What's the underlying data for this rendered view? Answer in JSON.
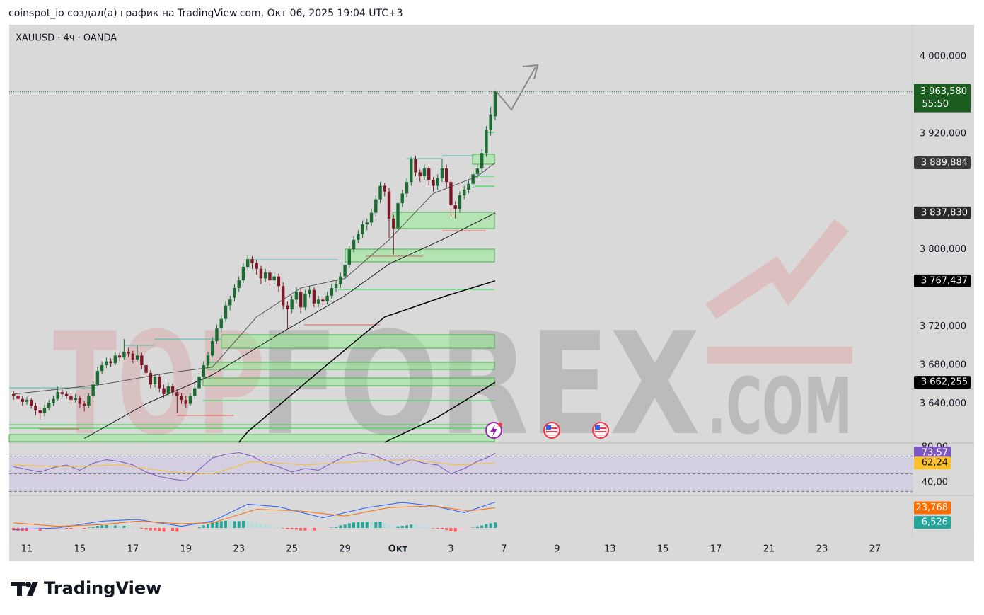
{
  "header": "coinspot_io создал(а) график на TradingView.com, Окт 06, 2025 19:04 UTC+3",
  "footer_logo": "TradingView",
  "chart_data": [
    {
      "type": "candlestick",
      "title": "XAUUSD · 4ч · OANDA",
      "watermark": [
        "TOP",
        "FOREX",
        ".COM"
      ],
      "up_color": "#1b6b32",
      "down_color": "#7b1a27",
      "ohlc": [
        [
          3650,
          3653,
          3644,
          3648
        ],
        [
          3648,
          3651,
          3642,
          3645
        ],
        [
          3645,
          3648,
          3638,
          3642
        ],
        [
          3642,
          3647,
          3639,
          3644
        ],
        [
          3644,
          3646,
          3635,
          3638
        ],
        [
          3638,
          3641,
          3628,
          3633
        ],
        [
          3633,
          3636,
          3624,
          3630
        ],
        [
          3630,
          3639,
          3627,
          3636
        ],
        [
          3636,
          3644,
          3633,
          3641
        ],
        [
          3641,
          3648,
          3638,
          3645
        ],
        [
          3645,
          3658,
          3643,
          3652
        ],
        [
          3652,
          3656,
          3647,
          3650
        ],
        [
          3650,
          3653,
          3645,
          3648
        ],
        [
          3648,
          3651,
          3640,
          3644
        ],
        [
          3644,
          3650,
          3641,
          3646
        ],
        [
          3646,
          3648,
          3636,
          3640
        ],
        [
          3640,
          3643,
          3632,
          3638
        ],
        [
          3638,
          3651,
          3636,
          3648
        ],
        [
          3648,
          3663,
          3646,
          3660
        ],
        [
          3660,
          3678,
          3658,
          3674
        ],
        [
          3674,
          3684,
          3671,
          3680
        ],
        [
          3680,
          3688,
          3677,
          3684
        ],
        [
          3684,
          3687,
          3678,
          3682
        ],
        [
          3682,
          3694,
          3680,
          3690
        ],
        [
          3690,
          3693,
          3684,
          3688
        ],
        [
          3688,
          3707,
          3686,
          3694
        ],
        [
          3694,
          3698,
          3688,
          3692
        ],
        [
          3692,
          3695,
          3682,
          3686
        ],
        [
          3686,
          3700,
          3684,
          3690
        ],
        [
          3690,
          3693,
          3676,
          3680
        ],
        [
          3680,
          3683,
          3668,
          3672
        ],
        [
          3672,
          3675,
          3656,
          3660
        ],
        [
          3660,
          3671,
          3657,
          3668
        ],
        [
          3668,
          3670,
          3652,
          3656
        ],
        [
          3656,
          3660,
          3646,
          3650
        ],
        [
          3650,
          3662,
          3648,
          3658
        ],
        [
          3658,
          3661,
          3648,
          3652
        ],
        [
          3652,
          3655,
          3630,
          3648
        ],
        [
          3648,
          3651,
          3640,
          3644
        ],
        [
          3644,
          3648,
          3636,
          3640
        ],
        [
          3640,
          3651,
          3638,
          3648
        ],
        [
          3648,
          3660,
          3645,
          3656
        ],
        [
          3656,
          3672,
          3654,
          3668
        ],
        [
          3668,
          3684,
          3665,
          3680
        ],
        [
          3680,
          3694,
          3677,
          3690
        ],
        [
          3690,
          3709,
          3688,
          3705
        ],
        [
          3705,
          3722,
          3702,
          3718
        ],
        [
          3718,
          3732,
          3714,
          3728
        ],
        [
          3728,
          3746,
          3725,
          3742
        ],
        [
          3742,
          3752,
          3737,
          3748
        ],
        [
          3750,
          3764,
          3746,
          3760
        ],
        [
          3760,
          3772,
          3756,
          3768
        ],
        [
          3768,
          3786,
          3765,
          3782
        ],
        [
          3782,
          3794,
          3778,
          3790
        ],
        [
          3790,
          3793,
          3780,
          3786
        ],
        [
          3786,
          3789,
          3774,
          3780
        ],
        [
          3780,
          3783,
          3764,
          3770
        ],
        [
          3770,
          3780,
          3766,
          3776
        ],
        [
          3776,
          3779,
          3762,
          3768
        ],
        [
          3768,
          3776,
          3764,
          3772
        ],
        [
          3772,
          3775,
          3756,
          3762
        ],
        [
          3762,
          3766,
          3738,
          3742
        ],
        [
          3742,
          3746,
          3717,
          3738
        ],
        [
          3738,
          3752,
          3734,
          3748
        ],
        [
          3748,
          3761,
          3744,
          3756
        ],
        [
          3756,
          3759,
          3734,
          3740
        ],
        [
          3740,
          3758,
          3737,
          3754
        ],
        [
          3754,
          3762,
          3750,
          3758
        ],
        [
          3758,
          3761,
          3740,
          3744
        ],
        [
          3744,
          3752,
          3740,
          3748
        ],
        [
          3748,
          3751,
          3742,
          3746
        ],
        [
          3746,
          3756,
          3743,
          3752
        ],
        [
          3752,
          3764,
          3749,
          3760
        ],
        [
          3760,
          3768,
          3756,
          3764
        ],
        [
          3764,
          3776,
          3760,
          3772
        ],
        [
          3772,
          3788,
          3769,
          3784
        ],
        [
          3784,
          3804,
          3781,
          3800
        ],
        [
          3800,
          3814,
          3797,
          3810
        ],
        [
          3810,
          3820,
          3806,
          3816
        ],
        [
          3816,
          3830,
          3812,
          3826
        ],
        [
          3826,
          3832,
          3820,
          3828
        ],
        [
          3828,
          3842,
          3824,
          3838
        ],
        [
          3838,
          3856,
          3834,
          3852
        ],
        [
          3852,
          3870,
          3848,
          3866
        ],
        [
          3866,
          3869,
          3855,
          3860
        ],
        [
          3860,
          3864,
          3812,
          3832
        ],
        [
          3832,
          3836,
          3795,
          3822
        ],
        [
          3822,
          3852,
          3818,
          3848
        ],
        [
          3848,
          3862,
          3844,
          3858
        ],
        [
          3858,
          3874,
          3854,
          3870
        ],
        [
          3870,
          3896,
          3866,
          3894
        ],
        [
          3894,
          3897,
          3876,
          3880
        ],
        [
          3880,
          3883,
          3870,
          3876
        ],
        [
          3876,
          3888,
          3872,
          3884
        ],
        [
          3884,
          3887,
          3866,
          3872
        ],
        [
          3872,
          3875,
          3860,
          3866
        ],
        [
          3866,
          3878,
          3862,
          3874
        ],
        [
          3874,
          3894,
          3870,
          3884
        ],
        [
          3884,
          3888,
          3864,
          3870
        ],
        [
          3870,
          3873,
          3834,
          3846
        ],
        [
          3846,
          3850,
          3832,
          3842
        ],
        [
          3842,
          3860,
          3838,
          3856
        ],
        [
          3856,
          3866,
          3852,
          3862
        ],
        [
          3862,
          3872,
          3858,
          3868
        ],
        [
          3868,
          3882,
          3864,
          3878
        ],
        [
          3878,
          3888,
          3874,
          3884
        ],
        [
          3884,
          3904,
          3880,
          3900
        ],
        [
          3900,
          3928,
          3896,
          3924
        ],
        [
          3924,
          3948,
          3918,
          3940
        ],
        [
          3938,
          3965,
          3934,
          3963.58
        ]
      ],
      "xlim": [
        -1,
        203.5
      ],
      "xticks": [
        {
          "value": 3,
          "label": "11"
        },
        {
          "value": 15,
          "label": "15"
        },
        {
          "value": 27,
          "label": "17"
        },
        {
          "value": 39,
          "label": "19"
        },
        {
          "value": 51,
          "label": "23"
        },
        {
          "value": 63,
          "label": "25"
        },
        {
          "value": 75,
          "label": "29"
        },
        {
          "value": 87,
          "label": "Окт"
        },
        {
          "value": 99,
          "label": "3"
        },
        {
          "value": 111,
          "label": "7"
        },
        {
          "value": 123,
          "label": "9"
        },
        {
          "value": 135,
          "label": "13"
        },
        {
          "value": 147,
          "label": "15"
        },
        {
          "value": 159,
          "label": "17"
        },
        {
          "value": 171,
          "label": "21"
        },
        {
          "value": 183,
          "label": "23"
        },
        {
          "value": 195,
          "label": "27"
        }
      ],
      "ylim": [
        3600,
        4033
      ],
      "yticks": [
        {
          "value": 3640,
          "label": "3 640,000"
        },
        {
          "value": 3680,
          "label": "3 680,000"
        },
        {
          "value": 3720,
          "label": "3 720,000"
        },
        {
          "value": 3800,
          "label": "3 800,000"
        },
        {
          "value": 3920,
          "label": "3 920,000"
        },
        {
          "value": 4000,
          "label": "4 000,000"
        }
      ],
      "last_price": {
        "label": "3 963,580",
        "countdown": "55:50",
        "color": "#1b5e20"
      },
      "series": [
        {
          "color": "#555555",
          "width": 1,
          "x": [
            0,
            20,
            35,
            45,
            55,
            65,
            75,
            85,
            95,
            105,
            109
          ],
          "values": [
            3650,
            3660,
            3672,
            3678,
            3730,
            3760,
            3770,
            3810,
            3858,
            3876,
            3889.884
          ],
          "end_label": "3 889,884",
          "label_color": "#3a3a3a"
        },
        {
          "color": "#1a1a1a",
          "width": 1,
          "x": [
            16,
            30,
            45,
            60,
            75,
            85,
            97,
            109
          ],
          "values": [
            3604,
            3640,
            3670,
            3712,
            3752,
            3785,
            3810,
            3837.83
          ],
          "end_label": "3 837,830",
          "label_color": "#2a2a2a"
        },
        {
          "color": "#000000",
          "width": 1.5,
          "x": [
            51,
            53,
            69,
            84,
            98,
            109
          ],
          "values": [
            3600,
            3611,
            3673,
            3730,
            3752,
            3767.437
          ],
          "end_label": "3 767,437",
          "label_color": "#000000"
        },
        {
          "color": "#000000",
          "width": 1.5,
          "x": [
            84,
            96,
            109
          ],
          "values": [
            3600,
            3626,
            3662.255
          ],
          "end_label": "3 662,255",
          "label_color": "#000000"
        }
      ]
    },
    {
      "type": "line",
      "ylim": [
        27.2,
        83.2
      ],
      "yticks": [
        {
          "value": 80,
          "label": "80,00"
        },
        {
          "value": 40,
          "label": "40,00"
        }
      ],
      "levels": [
        70,
        50,
        30
      ],
      "band": [
        30,
        70
      ],
      "band_color": "#d3cfe0",
      "series": [
        {
          "color": "#7e57c2",
          "width": 1,
          "x": [
            0,
            3,
            6,
            9,
            12,
            15,
            18,
            21,
            24,
            27,
            30,
            33,
            36,
            39,
            42,
            45,
            48,
            51,
            54,
            57,
            60,
            63,
            66,
            69,
            72,
            75,
            78,
            81,
            84,
            87,
            90,
            93,
            96,
            99,
            102,
            105,
            108,
            109
          ],
          "values": [
            58,
            55,
            52,
            57,
            60,
            54,
            62,
            66,
            64,
            60,
            52,
            47,
            44,
            42,
            55,
            68,
            72,
            74,
            70,
            62,
            58,
            52,
            56,
            54,
            62,
            70,
            74,
            72,
            66,
            60,
            66,
            62,
            60,
            50,
            56,
            64,
            70,
            73.57
          ],
          "end_label": "73,57",
          "label_color": "#7e57c2",
          "label_text_color": "#ffffff"
        },
        {
          "color": "#fbc02d",
          "width": 1,
          "x": [
            0,
            12,
            24,
            36,
            45,
            54,
            66,
            78,
            90,
            100,
            109
          ],
          "values": [
            60,
            58,
            60,
            52,
            50,
            64,
            60,
            64,
            66,
            60,
            62.24
          ],
          "end_label": "62,24",
          "label_color": "#fbc02d",
          "label_text_color": "#131722"
        }
      ]
    },
    {
      "type": "macd",
      "ylim": [
        -3.33,
        35.83
      ],
      "hist": [
        -3,
        -3.5,
        -4,
        -4,
        -3.5,
        -3,
        -3.5,
        -3,
        -2.5,
        -2,
        -1.5,
        -1,
        -1,
        -1.5,
        -1,
        -0.5,
        -1,
        0.5,
        1.5,
        2.5,
        3,
        3.5,
        3,
        3,
        2.5,
        2.5,
        2,
        1.5,
        1,
        -1,
        -2,
        -3,
        -3,
        -4,
        -4.5,
        -4,
        -4,
        -4.5,
        -3.5,
        -3,
        -2,
        -1,
        1,
        3,
        4.5,
        6,
        7,
        8,
        8.5,
        8,
        8,
        8,
        8.5,
        8,
        7,
        6,
        5,
        4,
        3,
        2.5,
        1.5,
        -0.5,
        -1.5,
        -1.5,
        -2,
        -3,
        -3,
        -2.5,
        -3,
        -2.5,
        -2,
        -1.5,
        0.5,
        1.5,
        3,
        4,
        5.5,
        6.5,
        7,
        7,
        7,
        6.5,
        7,
        7.5,
        6,
        3,
        1.5,
        2,
        2.5,
        3,
        4,
        3.5,
        2.5,
        2,
        1,
        -0.5,
        -1,
        -1.5,
        -2.5,
        -4,
        -4.5,
        -3.5,
        -2,
        -1,
        0.5,
        2,
        3,
        4.5,
        5.5,
        6.526
      ],
      "hist_colors": {
        "up_grow": "#26a69a",
        "up_fall": "#b2dfdb",
        "down_grow": "#ff5252",
        "down_fall": "#ffcdd2"
      },
      "hist_end_label": "6,526",
      "hist_label_color": "#26a69a",
      "series": [
        {
          "color": "#2962ff",
          "width": 1,
          "x": [
            0,
            10,
            20,
            28,
            38,
            45,
            53,
            60,
            70,
            80,
            88,
            95,
            102,
            109
          ],
          "values": [
            -2,
            0,
            8,
            10,
            2,
            8,
            28,
            25,
            12,
            24,
            30,
            26,
            18,
            30.29
          ]
        },
        {
          "color": "#ff6d00",
          "width": 1,
          "x": [
            0,
            10,
            20,
            28,
            38,
            45,
            55,
            65,
            75,
            85,
            95,
            103,
            109
          ],
          "values": [
            6,
            2,
            4,
            8,
            5,
            6,
            22,
            20,
            14,
            24,
            26,
            20,
            23.768
          ],
          "end_label": "23,768",
          "label_color": "#ff6d00",
          "label_text_color": "#ffffff"
        }
      ]
    }
  ]
}
